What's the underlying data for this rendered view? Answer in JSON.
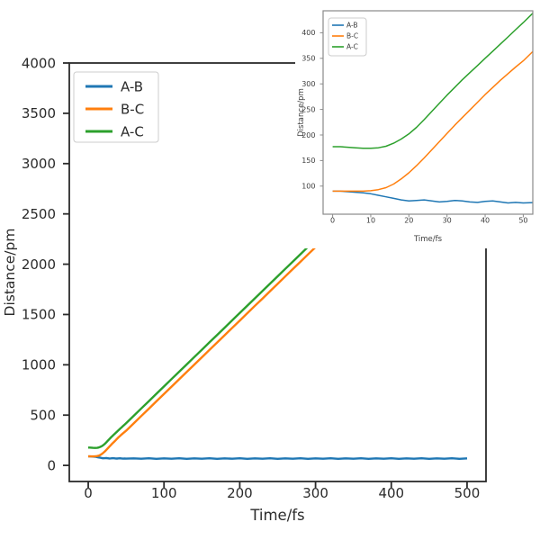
{
  "figure": {
    "background": "#ffffff"
  },
  "colors": {
    "series_ab": "#1f77b4",
    "series_bc": "#ff7f0e",
    "series_ac": "#2ca02c",
    "main_spine": "#2b2b2b",
    "main_text": "#2b2b2b",
    "inset_spine": "#8a8a8a",
    "inset_text": "#3d3d3d",
    "legend_border": "#cccccc"
  },
  "chart_data": {
    "type": "line",
    "title": "",
    "xlabel": "Time/fs",
    "ylabel": "Distance/pm",
    "legend_entries": [
      "A-B",
      "B-C",
      "A-C"
    ],
    "grid": false,
    "series": [
      {
        "name": "A-B",
        "color_key": "series_ab",
        "points": [
          [
            0,
            90
          ],
          [
            2,
            90
          ],
          [
            4,
            89
          ],
          [
            6,
            88
          ],
          [
            8,
            87
          ],
          [
            10,
            85
          ],
          [
            12,
            82
          ],
          [
            14,
            79
          ],
          [
            16,
            76
          ],
          [
            18,
            73
          ],
          [
            20,
            71
          ],
          [
            22,
            72
          ],
          [
            24,
            73
          ],
          [
            26,
            71
          ],
          [
            28,
            69
          ],
          [
            30,
            70
          ],
          [
            32,
            72
          ],
          [
            34,
            71
          ],
          [
            36,
            69
          ],
          [
            38,
            68
          ],
          [
            40,
            70
          ],
          [
            42,
            71
          ],
          [
            44,
            69
          ],
          [
            46,
            67
          ],
          [
            48,
            68
          ],
          [
            50,
            67
          ],
          [
            60,
            70
          ],
          [
            70,
            66
          ],
          [
            80,
            71
          ],
          [
            90,
            65
          ],
          [
            100,
            70
          ],
          [
            110,
            66
          ],
          [
            120,
            71
          ],
          [
            130,
            65
          ],
          [
            140,
            70
          ],
          [
            150,
            66
          ],
          [
            160,
            71
          ],
          [
            170,
            65
          ],
          [
            180,
            70
          ],
          [
            190,
            66
          ],
          [
            200,
            71
          ],
          [
            210,
            65
          ],
          [
            220,
            70
          ],
          [
            230,
            66
          ],
          [
            240,
            71
          ],
          [
            250,
            65
          ],
          [
            260,
            70
          ],
          [
            270,
            66
          ],
          [
            280,
            71
          ],
          [
            290,
            65
          ],
          [
            300,
            70
          ],
          [
            310,
            66
          ],
          [
            320,
            71
          ],
          [
            330,
            65
          ],
          [
            340,
            70
          ],
          [
            350,
            66
          ],
          [
            360,
            71
          ],
          [
            370,
            65
          ],
          [
            380,
            70
          ],
          [
            390,
            66
          ],
          [
            400,
            71
          ],
          [
            410,
            65
          ],
          [
            420,
            70
          ],
          [
            430,
            66
          ],
          [
            440,
            71
          ],
          [
            450,
            65
          ],
          [
            460,
            70
          ],
          [
            470,
            66
          ],
          [
            480,
            71
          ],
          [
            490,
            65
          ],
          [
            500,
            70
          ]
        ]
      },
      {
        "name": "B-C",
        "color_key": "series_bc",
        "points": [
          [
            0,
            90
          ],
          [
            2,
            90
          ],
          [
            4,
            90
          ],
          [
            6,
            90
          ],
          [
            8,
            90
          ],
          [
            10,
            91
          ],
          [
            12,
            93
          ],
          [
            14,
            97
          ],
          [
            16,
            104
          ],
          [
            18,
            114
          ],
          [
            20,
            126
          ],
          [
            22,
            140
          ],
          [
            24,
            155
          ],
          [
            26,
            171
          ],
          [
            28,
            187
          ],
          [
            30,
            203
          ],
          [
            32,
            219
          ],
          [
            34,
            234
          ],
          [
            36,
            249
          ],
          [
            38,
            264
          ],
          [
            40,
            279
          ],
          [
            42,
            293
          ],
          [
            44,
            307
          ],
          [
            46,
            320
          ],
          [
            48,
            333
          ],
          [
            50,
            345
          ],
          [
            60,
            418
          ],
          [
            70,
            491
          ],
          [
            80,
            564
          ],
          [
            90,
            637
          ],
          [
            100,
            710
          ],
          [
            110,
            783
          ],
          [
            120,
            856
          ],
          [
            130,
            929
          ],
          [
            140,
            1002
          ],
          [
            150,
            1075
          ],
          [
            160,
            1148
          ],
          [
            170,
            1221
          ],
          [
            180,
            1294
          ],
          [
            190,
            1367
          ],
          [
            200,
            1440
          ],
          [
            210,
            1513
          ],
          [
            220,
            1586
          ],
          [
            230,
            1659
          ],
          [
            240,
            1732
          ],
          [
            250,
            1805
          ],
          [
            260,
            1878
          ],
          [
            270,
            1951
          ],
          [
            280,
            2024
          ],
          [
            290,
            2097
          ],
          [
            300,
            2170
          ],
          [
            310,
            2243
          ],
          [
            320,
            2316
          ],
          [
            330,
            2389
          ],
          [
            340,
            2462
          ],
          [
            350,
            2535
          ],
          [
            360,
            2608
          ],
          [
            370,
            2681
          ],
          [
            380,
            2754
          ],
          [
            390,
            2827
          ],
          [
            400,
            2900
          ],
          [
            410,
            2973
          ],
          [
            420,
            3046
          ],
          [
            430,
            3119
          ],
          [
            440,
            3192
          ],
          [
            450,
            3265
          ],
          [
            460,
            3338
          ],
          [
            470,
            3411
          ],
          [
            480,
            3484
          ],
          [
            490,
            3557
          ],
          [
            500,
            3630
          ]
        ]
      },
      {
        "name": "A-C",
        "color_key": "series_ac",
        "points": [
          [
            0,
            177
          ],
          [
            2,
            177
          ],
          [
            4,
            176
          ],
          [
            6,
            175
          ],
          [
            8,
            174
          ],
          [
            10,
            174
          ],
          [
            12,
            175
          ],
          [
            14,
            178
          ],
          [
            16,
            184
          ],
          [
            18,
            192
          ],
          [
            20,
            202
          ],
          [
            22,
            215
          ],
          [
            24,
            230
          ],
          [
            26,
            246
          ],
          [
            28,
            262
          ],
          [
            30,
            278
          ],
          [
            32,
            293
          ],
          [
            34,
            308
          ],
          [
            36,
            322
          ],
          [
            38,
            336
          ],
          [
            40,
            350
          ],
          [
            42,
            364
          ],
          [
            44,
            378
          ],
          [
            46,
            392
          ],
          [
            48,
            406
          ],
          [
            50,
            420
          ],
          [
            60,
            493
          ],
          [
            70,
            566
          ],
          [
            80,
            639
          ],
          [
            90,
            712
          ],
          [
            100,
            785
          ],
          [
            110,
            858
          ],
          [
            120,
            931
          ],
          [
            130,
            1004
          ],
          [
            140,
            1077
          ],
          [
            150,
            1150
          ],
          [
            160,
            1223
          ],
          [
            170,
            1296
          ],
          [
            180,
            1369
          ],
          [
            190,
            1442
          ],
          [
            200,
            1515
          ],
          [
            210,
            1588
          ],
          [
            220,
            1661
          ],
          [
            230,
            1734
          ],
          [
            240,
            1807
          ],
          [
            250,
            1880
          ],
          [
            260,
            1953
          ],
          [
            270,
            2026
          ],
          [
            280,
            2099
          ],
          [
            290,
            2172
          ],
          [
            300,
            2245
          ],
          [
            310,
            2318
          ],
          [
            320,
            2391
          ],
          [
            330,
            2464
          ],
          [
            340,
            2537
          ],
          [
            350,
            2610
          ],
          [
            360,
            2683
          ],
          [
            370,
            2756
          ],
          [
            380,
            2829
          ],
          [
            390,
            2902
          ],
          [
            400,
            2975
          ],
          [
            410,
            3048
          ],
          [
            420,
            3121
          ],
          [
            430,
            3194
          ],
          [
            440,
            3267
          ],
          [
            450,
            3340
          ],
          [
            460,
            3413
          ],
          [
            470,
            3486
          ],
          [
            480,
            3559
          ],
          [
            490,
            3632
          ],
          [
            500,
            3705
          ]
        ]
      }
    ],
    "views": [
      {
        "id": "main",
        "description": "full trajectory 0-500 fs",
        "xlabel": "Time/fs",
        "ylabel": "Distance/pm",
        "xlim": [
          -25,
          525
        ],
        "ylim": [
          -160,
          4000
        ],
        "xticks": [
          0,
          100,
          200,
          300,
          400,
          500
        ],
        "yticks": [
          0,
          500,
          1000,
          1500,
          2000,
          2500,
          3000,
          3500,
          4000
        ],
        "legend_position": "upper left"
      },
      {
        "id": "inset",
        "description": "inset zoom of first 50 fs",
        "xlabel": "Time/fs",
        "ylabel": "Distance/pm",
        "xlim": [
          -2.5,
          52.5
        ],
        "ylim": [
          45,
          443
        ],
        "xticks": [
          0,
          10,
          20,
          30,
          40,
          50
        ],
        "yticks": [
          100,
          150,
          200,
          250,
          300,
          350,
          400
        ],
        "legend_position": "upper left"
      }
    ]
  }
}
